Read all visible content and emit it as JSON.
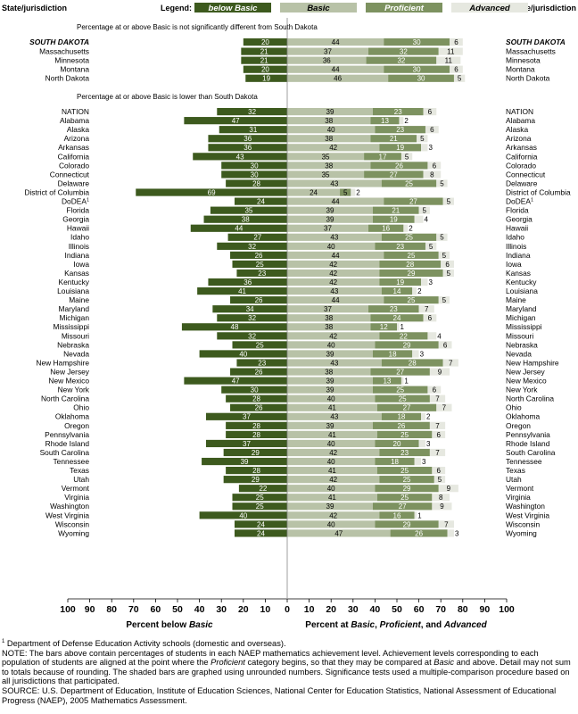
{
  "chart_data": {
    "type": "bar",
    "header": {
      "left": "State/jurisdiction",
      "right": "State/jurisdiction",
      "legend_label": "Legend:"
    },
    "legend": [
      {
        "key": "below",
        "name": "below Basic",
        "color": "#3d5a1e",
        "text_color": "#ffffff"
      },
      {
        "key": "basic",
        "name": "Basic",
        "color": "#b8c2a7",
        "text_color": "#000000"
      },
      {
        "key": "proficient",
        "name": "Proficient",
        "color": "#7d9260",
        "text_color": "#ffffff"
      },
      {
        "key": "advanced",
        "name": "Advanced",
        "color": "#e6e8e0",
        "text_color": "#000000"
      }
    ],
    "group_notes": [
      "Percentage at or above Basic is not significantly different from South Dakota",
      "Percentage at or above Basic is lower than South Dakota"
    ],
    "reference": {
      "name": "SOUTH DAKOTA",
      "values": [
        20,
        44,
        30,
        6
      ]
    },
    "group1": [
      {
        "name": "Massachusetts",
        "values": [
          21,
          37,
          32,
          11
        ]
      },
      {
        "name": "Minnesota",
        "values": [
          21,
          36,
          32,
          11
        ]
      },
      {
        "name": "Montana",
        "values": [
          20,
          44,
          30,
          6
        ]
      },
      {
        "name": "North Dakota",
        "values": [
          19,
          46,
          30,
          5
        ]
      }
    ],
    "group2": [
      {
        "name": "NATION",
        "values": [
          32,
          39,
          23,
          6
        ]
      },
      {
        "name": "Alabama",
        "values": [
          47,
          38,
          13,
          2
        ]
      },
      {
        "name": "Alaska",
        "values": [
          31,
          40,
          23,
          6
        ]
      },
      {
        "name": "Arizona",
        "values": [
          36,
          38,
          21,
          5
        ]
      },
      {
        "name": "Arkansas",
        "values": [
          36,
          42,
          19,
          3
        ]
      },
      {
        "name": "California",
        "values": [
          43,
          35,
          17,
          5
        ]
      },
      {
        "name": "Colorado",
        "values": [
          30,
          38,
          26,
          6
        ]
      },
      {
        "name": "Connecticut",
        "values": [
          30,
          35,
          27,
          8
        ]
      },
      {
        "name": "Delaware",
        "values": [
          28,
          43,
          25,
          5
        ]
      },
      {
        "name": "District of Columbia",
        "values": [
          69,
          24,
          5,
          2
        ]
      },
      {
        "name": "DoDEA",
        "sup": "1",
        "values": [
          24,
          44,
          27,
          5
        ]
      },
      {
        "name": "Florida",
        "values": [
          35,
          39,
          21,
          5
        ]
      },
      {
        "name": "Georgia",
        "values": [
          38,
          39,
          19,
          4
        ]
      },
      {
        "name": "Hawaii",
        "values": [
          44,
          37,
          16,
          2
        ]
      },
      {
        "name": "Idaho",
        "values": [
          27,
          43,
          25,
          5
        ]
      },
      {
        "name": "Illinois",
        "values": [
          32,
          40,
          23,
          5
        ]
      },
      {
        "name": "Indiana",
        "values": [
          26,
          44,
          25,
          5
        ]
      },
      {
        "name": "Iowa",
        "values": [
          25,
          42,
          28,
          6
        ]
      },
      {
        "name": "Kansas",
        "values": [
          23,
          42,
          29,
          5
        ]
      },
      {
        "name": "Kentucky",
        "values": [
          36,
          42,
          19,
          3
        ]
      },
      {
        "name": "Louisiana",
        "values": [
          41,
          43,
          14,
          2
        ]
      },
      {
        "name": "Maine",
        "values": [
          26,
          44,
          25,
          5
        ]
      },
      {
        "name": "Maryland",
        "values": [
          34,
          37,
          23,
          7
        ]
      },
      {
        "name": "Michigan",
        "values": [
          32,
          38,
          24,
          6
        ]
      },
      {
        "name": "Mississippi",
        "values": [
          48,
          38,
          12,
          1
        ]
      },
      {
        "name": "Missouri",
        "values": [
          32,
          42,
          22,
          4
        ]
      },
      {
        "name": "Nebraska",
        "values": [
          25,
          40,
          29,
          6
        ]
      },
      {
        "name": "Nevada",
        "values": [
          40,
          39,
          18,
          3
        ]
      },
      {
        "name": "New Hampshire",
        "values": [
          23,
          43,
          28,
          7
        ]
      },
      {
        "name": "New Jersey",
        "values": [
          26,
          38,
          27,
          9
        ]
      },
      {
        "name": "New Mexico",
        "values": [
          47,
          39,
          13,
          1
        ]
      },
      {
        "name": "New York",
        "values": [
          30,
          39,
          25,
          6
        ]
      },
      {
        "name": "North Carolina",
        "values": [
          28,
          40,
          25,
          7
        ]
      },
      {
        "name": "Ohio",
        "values": [
          26,
          41,
          27,
          7
        ]
      },
      {
        "name": "Oklahoma",
        "values": [
          37,
          43,
          18,
          2
        ]
      },
      {
        "name": "Oregon",
        "values": [
          28,
          39,
          26,
          7
        ]
      },
      {
        "name": "Pennsylvania",
        "values": [
          28,
          41,
          25,
          6
        ]
      },
      {
        "name": "Rhode Island",
        "values": [
          37,
          40,
          20,
          3
        ]
      },
      {
        "name": "South Carolina",
        "values": [
          29,
          42,
          23,
          7
        ]
      },
      {
        "name": "Tennessee",
        "values": [
          39,
          40,
          18,
          3
        ]
      },
      {
        "name": "Texas",
        "values": [
          28,
          41,
          25,
          6
        ]
      },
      {
        "name": "Utah",
        "values": [
          29,
          42,
          25,
          5
        ]
      },
      {
        "name": "Vermont",
        "values": [
          22,
          40,
          29,
          9
        ]
      },
      {
        "name": "Virginia",
        "values": [
          25,
          41,
          25,
          8
        ]
      },
      {
        "name": "Washington",
        "values": [
          25,
          39,
          27,
          9
        ]
      },
      {
        "name": "West Virginia",
        "values": [
          40,
          42,
          16,
          1
        ]
      },
      {
        "name": "Wisconsin",
        "values": [
          24,
          40,
          29,
          7
        ]
      },
      {
        "name": "Wyoming",
        "values": [
          24,
          47,
          26,
          3
        ]
      }
    ],
    "x_ticks": [
      100,
      90,
      80,
      70,
      60,
      50,
      40,
      30,
      20,
      10,
      0,
      10,
      20,
      30,
      40,
      50,
      60,
      70,
      80,
      90,
      100
    ],
    "xlim": [
      -100,
      100
    ],
    "xlabel_left_prefix": "Percent below ",
    "xlabel_left_em": "Basic",
    "xlabel_right_prefix": "Percent at ",
    "xlabel_right_em1": "Basic",
    "xlabel_right_em2": "Proficient",
    "xlabel_right_mid": ", ",
    "xlabel_right_suffix": ", and ",
    "xlabel_right_em3": "Advanced"
  },
  "notes": {
    "footnote_sup": "1",
    "footnote": " Department of Defense Education Activity schools (domestic and overseas).",
    "note_1": "NOTE: The bars above contain percentages of students in each NAEP mathematics achievement level. Achievement levels corresponding to each population of students are aligned at the point where the ",
    "note_em1": "Proficient",
    "note_2": " category begins, so that they may be compared at ",
    "note_em2": "Basic",
    "note_3": " and above. Detail may not sum to totals because of rounding. The shaded bars are graphed using unrounded numbers. Significance tests used a multiple-comparison procedure based on all jurisdictions that participated.",
    "source": "SOURCE: U.S. Department of Education, Institute of Education Sciences, National Center for Education Statistics, National Assessment of Educational Progress (NAEP), 2005 Mathematics Assessment."
  }
}
